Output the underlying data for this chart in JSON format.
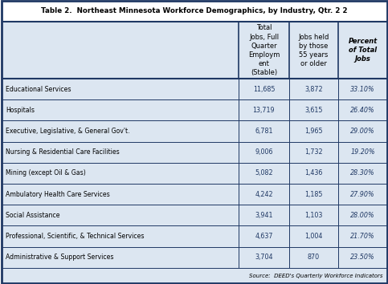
{
  "title": "Table 2.  Northeast Minnesota Workforce Demographics, by Industry, Qtr. 2 2",
  "col_headers": [
    "",
    "Total\nJobs, Full\nQuarter\nEmploym\nent\n(Stable)",
    "Jobs held\nby those\n55 years\nor older",
    "Percent\nof Total\nJobs"
  ],
  "rows": [
    [
      "Educational Services",
      "11,685",
      "3,872",
      "33.10%"
    ],
    [
      "Hospitals",
      "13,719",
      "3,615",
      "26.40%"
    ],
    [
      "Executive, Legislative, & General Gov't.",
      "6,781",
      "1,965",
      "29.00%"
    ],
    [
      "Nursing & Residential Care Facilities",
      "9,006",
      "1,732",
      "19.20%"
    ],
    [
      "Mining (except Oil & Gas)",
      "5,082",
      "1,436",
      "28.30%"
    ],
    [
      "Ambulatory Health Care Services",
      "4,242",
      "1,185",
      "27.90%"
    ],
    [
      "Social Assistance",
      "3,941",
      "1,103",
      "28.00%"
    ],
    [
      "Professional, Scientific, & Technical Services",
      "4,637",
      "1,004",
      "21.70%"
    ],
    [
      "Administrative & Support Services",
      "3,704",
      "870",
      "23.50%"
    ]
  ],
  "source": "Source:  DEED's Quarterly Workforce Indicators",
  "header_bg": "#dce6f1",
  "border_color": "#1f3864",
  "title_bg": "#ffffff",
  "text_color": "#000000",
  "data_color": "#1f3864",
  "figsize": [
    4.83,
    3.54
  ],
  "dpi": 100
}
